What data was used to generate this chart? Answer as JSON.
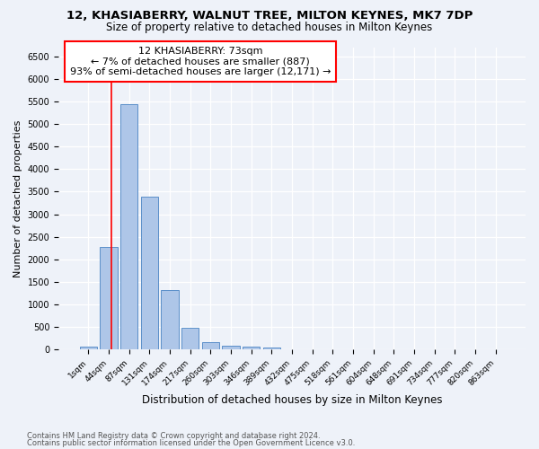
{
  "title1": "12, KHASIABERRY, WALNUT TREE, MILTON KEYNES, MK7 7DP",
  "title2": "Size of property relative to detached houses in Milton Keynes",
  "xlabel": "Distribution of detached houses by size in Milton Keynes",
  "ylabel": "Number of detached properties",
  "footnote1": "Contains HM Land Registry data © Crown copyright and database right 2024.",
  "footnote2": "Contains public sector information licensed under the Open Government Licence v3.0.",
  "bar_labels": [
    "1sqm",
    "44sqm",
    "87sqm",
    "131sqm",
    "174sqm",
    "217sqm",
    "260sqm",
    "303sqm",
    "346sqm",
    "389sqm",
    "432sqm",
    "475sqm",
    "518sqm",
    "561sqm",
    "604sqm",
    "648sqm",
    "691sqm",
    "734sqm",
    "777sqm",
    "820sqm",
    "863sqm"
  ],
  "bar_values": [
    75,
    2270,
    5430,
    3380,
    1310,
    480,
    160,
    90,
    75,
    50,
    0,
    0,
    0,
    0,
    0,
    0,
    0,
    0,
    0,
    0,
    0
  ],
  "bar_color": "#aec6e8",
  "bar_edge_color": "#5b8fc9",
  "vline_x": 1.15,
  "annotation_text": "12 KHASIABERRY: 73sqm\n← 7% of detached houses are smaller (887)\n93% of semi-detached houses are larger (12,171) →",
  "vline_color": "red",
  "ylim": [
    0,
    6700
  ],
  "yticks": [
    0,
    500,
    1000,
    1500,
    2000,
    2500,
    3000,
    3500,
    4000,
    4500,
    5000,
    5500,
    6000,
    6500
  ],
  "bg_color": "#eef2f9",
  "grid_color": "white",
  "title1_fontsize": 9.5,
  "title2_fontsize": 8.5,
  "xlabel_fontsize": 8.5,
  "ylabel_fontsize": 8.0,
  "footnote_fontsize": 6.0,
  "ann_fontsize": 8.0
}
